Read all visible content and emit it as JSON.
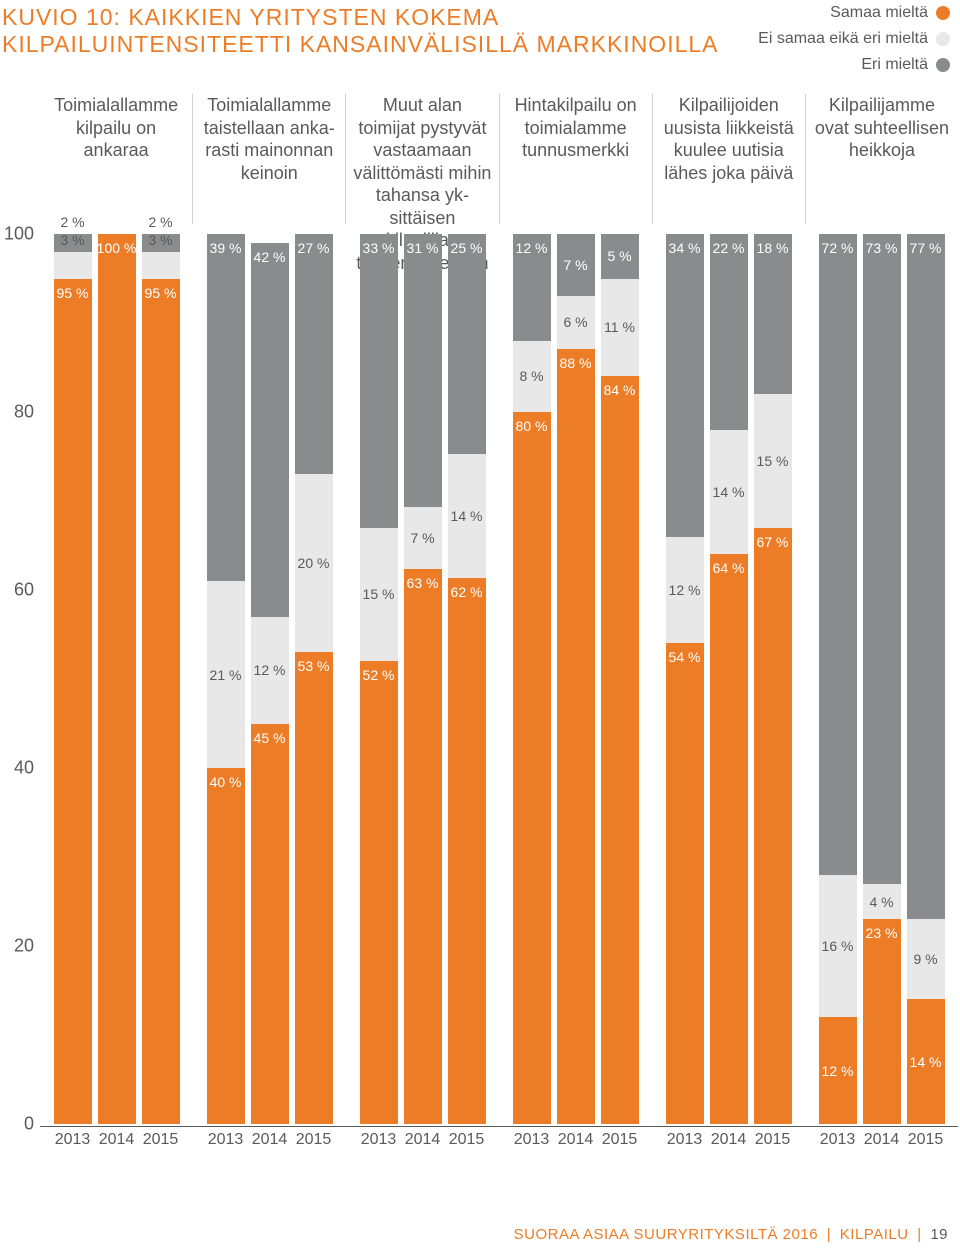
{
  "title": {
    "line1": "KUVIO 10: KAIKKIEN YRITYSTEN KOKEMA",
    "line2": "KILPAILUINTENSITEETTI KANSAINVÄLISILLÄ MARKKINOILLA"
  },
  "legend": {
    "items": [
      {
        "label": "Samaa mieltä",
        "color": "#ec7d26"
      },
      {
        "label": "Ei samaa eikä eri mieltä",
        "color": "#e8e8e8"
      },
      {
        "label": "Eri mieltä",
        "color": "#8a8b8c"
      }
    ]
  },
  "chart": {
    "type": "stacked-bar",
    "colors": {
      "agree": "#ec7d26",
      "neutral": "#e8e8e8",
      "disagree": "#8a8b8c",
      "bg": "#ffffff",
      "axis": "#5a5a5a",
      "divider": "#d0d0d0"
    },
    "ylim": [
      0,
      100
    ],
    "yticks": [
      0,
      20,
      40,
      60,
      80,
      100
    ],
    "years": [
      "2013",
      "2014",
      "2015"
    ],
    "groups": [
      {
        "header": "Toimialallamme kilpailu on ankaraa",
        "bars": [
          {
            "agree": 95,
            "neutral": 3,
            "disagree": 2,
            "labels": {
              "agree": "95 %",
              "neutral": "3 %",
              "disagree": "2 %"
            },
            "tinyDisagree": true
          },
          {
            "agree": 100,
            "neutral": 0,
            "disagree": 0,
            "labels": {
              "agree": "100 %"
            }
          },
          {
            "agree": 95,
            "neutral": 3,
            "disagree": 2,
            "labels": {
              "agree": "95 %",
              "neutral": "3 %",
              "disagree": "2 %"
            },
            "tinyDisagree": true
          }
        ]
      },
      {
        "header": "Toimialallamme taistellaan anka­rasti mainonnan keinoin",
        "bars": [
          {
            "agree": 40,
            "neutral": 21,
            "disagree": 39,
            "labels": {
              "agree": "40 %",
              "neutral": "21 %",
              "disagree": "39 %"
            }
          },
          {
            "agree": 45,
            "neutral": 12,
            "disagree": 42,
            "labels": {
              "agree": "45 %",
              "neutral": "12 %",
              "disagree": "42 %"
            }
          },
          {
            "agree": 53,
            "neutral": 20,
            "disagree": 27,
            "labels": {
              "agree": "53 %",
              "neutral": "20 %",
              "disagree": "27 %"
            }
          }
        ]
      },
      {
        "header": "Muut alan toimijat pystyvät vastaa­maan välittömästi mihin tahansa yk­sittäisen kilpailijan toimenpiteeseen",
        "bars": [
          {
            "agree": 52,
            "neutral": 15,
            "disagree": 33,
            "labels": {
              "agree": "52 %",
              "neutral": "15 %",
              "disagree": "33 %"
            }
          },
          {
            "agree": 63,
            "neutral": 7,
            "disagree": 31,
            "labels": {
              "agree": "63 %",
              "neutral": "7 %",
              "disagree": "31 %"
            }
          },
          {
            "agree": 62,
            "neutral": 14,
            "disagree": 25,
            "labels": {
              "agree": "62 %",
              "neutral": "14 %",
              "disagree": "25 %"
            }
          }
        ]
      },
      {
        "header": "Hintakilpailu on toimialamme tunnusmerkki",
        "bars": [
          {
            "agree": 80,
            "neutral": 8,
            "disagree": 12,
            "labels": {
              "agree": "80 %",
              "neutral": "8 %",
              "disagree": "12 %"
            }
          },
          {
            "agree": 88,
            "neutral": 6,
            "disagree": 7,
            "labels": {
              "agree": "88 %",
              "neutral": "6 %",
              "disagree": "7 %"
            }
          },
          {
            "agree": 84,
            "neutral": 11,
            "disagree": 5,
            "labels": {
              "agree": "84 %",
              "neutral": "11 %",
              "disagree": "5 %"
            }
          }
        ]
      },
      {
        "header": "Kilpailijoiden uusista liikkeistä kuulee uutisia lähes joka päivä",
        "bars": [
          {
            "agree": 54,
            "neutral": 12,
            "disagree": 34,
            "labels": {
              "agree": "54 %",
              "neutral": "12 %",
              "disagree": "34 %"
            }
          },
          {
            "agree": 64,
            "neutral": 14,
            "disagree": 22,
            "labels": {
              "agree": "64 %",
              "neutral": "14 %",
              "disagree": "22 %"
            }
          },
          {
            "agree": 67,
            "neutral": 15,
            "disagree": 18,
            "labels": {
              "agree": "67 %",
              "neutral": "15 %",
              "disagree": "18 %"
            }
          }
        ]
      },
      {
        "header": "Kilpailijamme ovat suhteellisen heikkoja",
        "bars": [
          {
            "agree": 12,
            "neutral": 16,
            "disagree": 72,
            "labels": {
              "agree": "12 %",
              "neutral": "16 %",
              "disagree": "72 %"
            }
          },
          {
            "agree": 23,
            "neutral": 4,
            "disagree": 73,
            "labels": {
              "agree": "23 %",
              "neutral": "4 %",
              "disagree": "73 %"
            }
          },
          {
            "agree": 14,
            "neutral": 9,
            "disagree": 77,
            "labels": {
              "agree": "14 %",
              "neutral": "9 %",
              "disagree": "77 %"
            }
          }
        ]
      }
    ]
  },
  "footer": {
    "text": "SUORAA ASIAA SUURYRITYKSILTÄ 2016",
    "section": "KILPAILU",
    "page": "19"
  }
}
